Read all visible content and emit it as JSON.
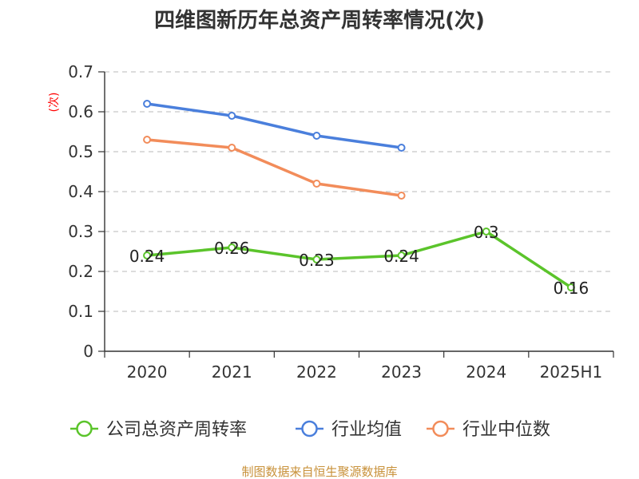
{
  "chart_data": {
    "type": "line",
    "title": "四维图新历年总资产周转率情况(次)",
    "ylabel": "(次)",
    "xlabel": "",
    "categories": [
      "2020",
      "2021",
      "2022",
      "2023",
      "2024",
      "2025H1"
    ],
    "ylim": [
      0,
      0.7
    ],
    "yticks": [
      "0",
      "0.1",
      "0.2",
      "0.3",
      "0.4",
      "0.5",
      "0.6",
      "0.7"
    ],
    "grid": true,
    "legend_position": "bottom",
    "series": [
      {
        "name": "公司总资产周转率",
        "color": "#5bc42b",
        "values": [
          0.24,
          0.26,
          0.23,
          0.24,
          0.3,
          0.16
        ],
        "labels": [
          "0.24",
          "0.26",
          "0.23",
          "0.24",
          "0.3",
          "0.16"
        ]
      },
      {
        "name": "行业均值",
        "color": "#4a7fdc",
        "values": [
          0.62,
          0.59,
          0.54,
          0.51,
          null,
          null
        ]
      },
      {
        "name": "行业中位数",
        "color": "#f28c5a",
        "values": [
          0.53,
          0.51,
          0.42,
          0.39,
          null,
          null
        ]
      }
    ]
  },
  "source": "制图数据来自恒生聚源数据库"
}
